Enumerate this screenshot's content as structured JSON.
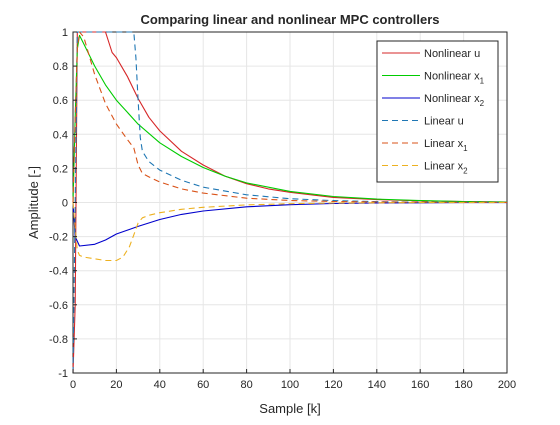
{
  "chart_data": {
    "type": "line",
    "title": "Comparing linear and nonlinear MPC controllers",
    "xlabel": "Sample [k]",
    "ylabel": "Amplitude [-]",
    "xlim": [
      0,
      200
    ],
    "ylim": [
      -1,
      1
    ],
    "grid": true,
    "legend_position": "top-right",
    "xticks": [
      "0",
      "20",
      "40",
      "60",
      "80",
      "100",
      "120",
      "140",
      "160",
      "180",
      "200"
    ],
    "yticks": [
      "-1",
      "-0.8",
      "-0.6",
      "-0.4",
      "-0.2",
      "0",
      "0.2",
      "0.4",
      "0.6",
      "0.8",
      "1"
    ],
    "series": [
      {
        "name": "Nonlinear u",
        "name_base": "Nonlinear u",
        "name_sub": "",
        "color": "#d62728",
        "dash": "solid",
        "x": [
          0,
          1,
          2,
          5,
          10,
          15,
          18,
          20,
          25,
          30,
          35,
          40,
          50,
          60,
          70,
          80,
          90,
          100,
          120,
          140,
          160,
          180,
          200
        ],
        "y": [
          -1,
          -0.6,
          1,
          1,
          1,
          1,
          0.88,
          0.85,
          0.74,
          0.61,
          0.5,
          0.42,
          0.3,
          0.22,
          0.155,
          0.11,
          0.08,
          0.06,
          0.03,
          0.017,
          0.01,
          0.005,
          0.003
        ]
      },
      {
        "name": "Nonlinear x1",
        "name_base": "Nonlinear x",
        "name_sub": "1",
        "color": "#00cc00",
        "dash": "solid",
        "x": [
          0,
          1,
          2,
          3,
          5,
          10,
          15,
          20,
          30,
          40,
          50,
          60,
          70,
          80,
          100,
          120,
          140,
          160,
          180,
          200
        ],
        "y": [
          0,
          0.5,
          0.9,
          0.98,
          0.93,
          0.8,
          0.69,
          0.6,
          0.46,
          0.35,
          0.27,
          0.205,
          0.155,
          0.115,
          0.065,
          0.035,
          0.02,
          0.011,
          0.006,
          0.003
        ]
      },
      {
        "name": "Nonlinear x2",
        "name_base": "Nonlinear x",
        "name_sub": "2",
        "color": "#0000cc",
        "dash": "solid",
        "x": [
          0,
          1,
          3,
          10,
          15,
          20,
          30,
          40,
          50,
          60,
          80,
          100,
          120,
          140,
          160,
          180,
          200
        ],
        "y": [
          0,
          -0.2,
          -0.255,
          -0.245,
          -0.22,
          -0.185,
          -0.14,
          -0.1,
          -0.07,
          -0.05,
          -0.025,
          -0.013,
          -0.006,
          -0.003,
          -0.0015,
          -0.0007,
          -0.0003
        ]
      },
      {
        "name": "Linear u",
        "name_base": "Linear u",
        "name_sub": "",
        "color": "#1f77b4",
        "dash": "dashed",
        "x": [
          0,
          1,
          2,
          5,
          10,
          20,
          28,
          29,
          30,
          31,
          32,
          35,
          40,
          50,
          60,
          80,
          100,
          120,
          140,
          160,
          200
        ],
        "y": [
          -1,
          0,
          1,
          1,
          1,
          1,
          1,
          0.85,
          0.6,
          0.38,
          0.3,
          0.24,
          0.19,
          0.13,
          0.09,
          0.045,
          0.022,
          0.011,
          0.005,
          0.002,
          0.0005
        ]
      },
      {
        "name": "Linear x1",
        "name_base": "Linear x",
        "name_sub": "1",
        "color": "#d95319",
        "dash": "dashed",
        "x": [
          0,
          1,
          2,
          3,
          5,
          10,
          15,
          20,
          25,
          28,
          30,
          32,
          35,
          40,
          50,
          60,
          80,
          100,
          120,
          140,
          160,
          200
        ],
        "y": [
          0,
          0.5,
          0.9,
          1,
          0.97,
          0.75,
          0.58,
          0.46,
          0.37,
          0.32,
          0.22,
          0.17,
          0.15,
          0.12,
          0.08,
          0.055,
          0.025,
          0.012,
          0.006,
          0.003,
          0.0015,
          0.0003
        ]
      },
      {
        "name": "Linear x2",
        "name_base": "Linear x",
        "name_sub": "2",
        "color": "#edb120",
        "dash": "dashed",
        "x": [
          0,
          1,
          2,
          3,
          5,
          10,
          15,
          20,
          23,
          26,
          28,
          30,
          32,
          35,
          40,
          50,
          60,
          80,
          100,
          120,
          140,
          160,
          200
        ],
        "y": [
          0,
          -0.15,
          -0.28,
          -0.31,
          -0.32,
          -0.33,
          -0.34,
          -0.34,
          -0.32,
          -0.26,
          -0.19,
          -0.12,
          -0.09,
          -0.075,
          -0.06,
          -0.04,
          -0.028,
          -0.014,
          -0.007,
          -0.003,
          -0.0015,
          -0.0007,
          -0.0002
        ]
      }
    ]
  }
}
